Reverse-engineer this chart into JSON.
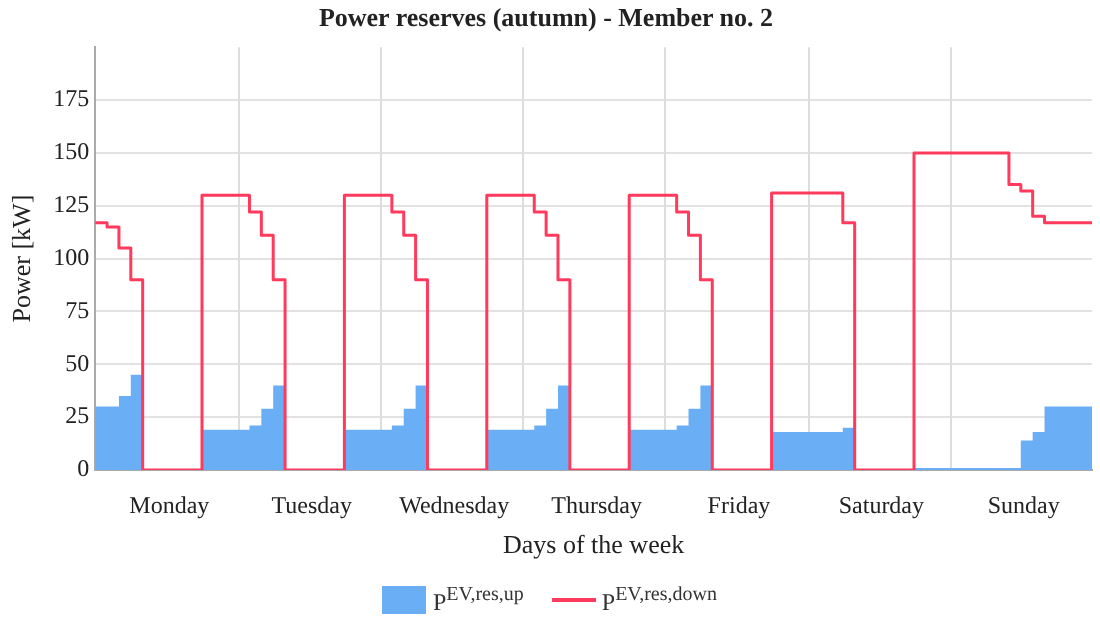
{
  "chart_data": {
    "type": "step",
    "title": "Power reserves (autumn) - Member no. 2",
    "xlabel": "Days of the week",
    "ylabel": "Power [kW]",
    "categories": [
      null,
      null,
      null,
      null,
      null,
      null,
      null,
      null,
      null,
      null,
      null,
      null,
      "Monday",
      null,
      null,
      null,
      null,
      null,
      null,
      null,
      null,
      null,
      null,
      null,
      null,
      null,
      null,
      null,
      null,
      null,
      null,
      null,
      null,
      null,
      null,
      null,
      "Tuesday",
      null,
      null,
      null,
      null,
      null,
      null,
      null,
      null,
      null,
      null,
      null,
      null,
      null,
      null,
      null,
      null,
      null,
      null,
      null,
      null,
      null,
      null,
      null,
      "Wednesday",
      null,
      null,
      null,
      null,
      null,
      null,
      null,
      null,
      null,
      null,
      null,
      null,
      null,
      null,
      null,
      null,
      null,
      null,
      null,
      null,
      null,
      null,
      null,
      "Thursday",
      null,
      null,
      null,
      null,
      null,
      null,
      null,
      null,
      null,
      null,
      null,
      null,
      null,
      null,
      null,
      null,
      null,
      null,
      null,
      null,
      null,
      null,
      null,
      "Friday",
      null,
      null,
      null,
      null,
      null,
      null,
      null,
      null,
      null,
      null,
      null,
      null,
      null,
      null,
      null,
      null,
      null,
      null,
      null,
      null,
      null,
      null,
      null,
      "Saturday",
      null,
      null,
      null,
      null,
      null,
      null,
      null,
      null,
      null,
      null,
      null,
      null,
      null,
      null,
      null,
      null,
      null,
      null,
      null,
      null,
      null,
      null,
      null,
      "Sunday",
      null,
      null,
      null,
      null,
      null,
      null,
      null,
      null,
      null,
      null,
      null
    ],
    "ylim": [
      0,
      200
    ],
    "yticks": [
      0,
      25,
      50,
      75,
      100,
      125,
      150,
      175
    ],
    "grid": true,
    "legend": "bottom",
    "series": [
      {
        "name": "P$^{EV,res,up}$",
        "type": "area",
        "color": "#6aaff5",
        "values": [
          30,
          30,
          30,
          30,
          35,
          35,
          45,
          45,
          0,
          0,
          0,
          0,
          0,
          0,
          0,
          0,
          0,
          0,
          19,
          19,
          19,
          19,
          19,
          19,
          19,
          19,
          21,
          21,
          29,
          29,
          40,
          40,
          0,
          0,
          0,
          0,
          0,
          0,
          0,
          0,
          0,
          0,
          19,
          19,
          19,
          19,
          19,
          19,
          19,
          19,
          21,
          21,
          29,
          29,
          40,
          40,
          0,
          0,
          0,
          0,
          0,
          0,
          0,
          0,
          0,
          0,
          19,
          19,
          19,
          19,
          19,
          19,
          19,
          19,
          21,
          21,
          29,
          29,
          40,
          40,
          0,
          0,
          0,
          0,
          0,
          0,
          0,
          0,
          0,
          0,
          19,
          19,
          19,
          19,
          19,
          19,
          19,
          19,
          21,
          21,
          29,
          29,
          40,
          40,
          0,
          0,
          0,
          0,
          0,
          0,
          0,
          0,
          0,
          0,
          18,
          18,
          18,
          18,
          18,
          18,
          18,
          18,
          18,
          18,
          18,
          18,
          20,
          20,
          0,
          0,
          0,
          0,
          0,
          0,
          0,
          0,
          0,
          0,
          1,
          1,
          1,
          1,
          1,
          1,
          1,
          1,
          1,
          1,
          1,
          1,
          1,
          1,
          1,
          1,
          1,
          1,
          14,
          14,
          18,
          18,
          30,
          30,
          30,
          30,
          30,
          30,
          30,
          30
        ]
      },
      {
        "name": "P$^{EV,res,down}$",
        "type": "step",
        "color": "#ff3a5c",
        "values": [
          117,
          117,
          115,
          115,
          105,
          105,
          90,
          90,
          0,
          0,
          0,
          0,
          0,
          0,
          0,
          0,
          0,
          0,
          130,
          130,
          130,
          130,
          130,
          130,
          130,
          130,
          122,
          122,
          111,
          111,
          90,
          90,
          0,
          0,
          0,
          0,
          0,
          0,
          0,
          0,
          0,
          0,
          130,
          130,
          130,
          130,
          130,
          130,
          130,
          130,
          122,
          122,
          111,
          111,
          90,
          90,
          0,
          0,
          0,
          0,
          0,
          0,
          0,
          0,
          0,
          0,
          130,
          130,
          130,
          130,
          130,
          130,
          130,
          130,
          122,
          122,
          111,
          111,
          90,
          90,
          0,
          0,
          0,
          0,
          0,
          0,
          0,
          0,
          0,
          0,
          130,
          130,
          130,
          130,
          130,
          130,
          130,
          130,
          122,
          122,
          111,
          111,
          90,
          90,
          0,
          0,
          0,
          0,
          0,
          0,
          0,
          0,
          0,
          0,
          131,
          131,
          131,
          131,
          131,
          131,
          131,
          131,
          131,
          131,
          131,
          131,
          117,
          117,
          0,
          0,
          0,
          0,
          0,
          0,
          0,
          0,
          0,
          0,
          150,
          150,
          150,
          150,
          150,
          150,
          150,
          150,
          150,
          150,
          150,
          150,
          150,
          150,
          150,
          150,
          135,
          135,
          132,
          132,
          120,
          120,
          117,
          117,
          117,
          117,
          117,
          117,
          117,
          117
        ]
      }
    ]
  }
}
